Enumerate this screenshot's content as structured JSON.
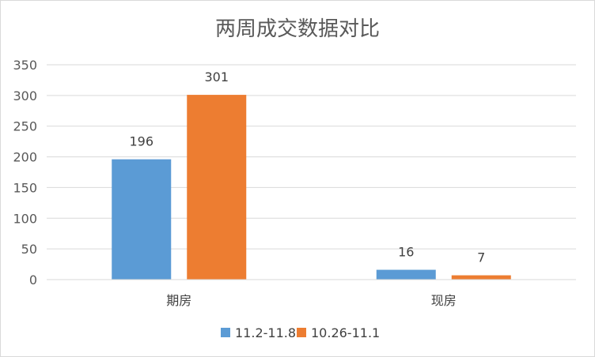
{
  "chart_data": {
    "type": "bar",
    "title": "两周成交数据对比",
    "categories": [
      "期房",
      "现房"
    ],
    "series": [
      {
        "name": "11.2-11.8",
        "values": [
          196,
          16
        ],
        "color": "#5b9bd5"
      },
      {
        "name": "10.26-11.1",
        "values": [
          301,
          7
        ],
        "color": "#ed7d31"
      }
    ],
    "y_ticks": [
      0,
      50,
      100,
      150,
      200,
      250,
      300,
      350
    ],
    "ylim": [
      0,
      350
    ],
    "grid": true,
    "legend_position": "bottom",
    "data_labels": true
  }
}
